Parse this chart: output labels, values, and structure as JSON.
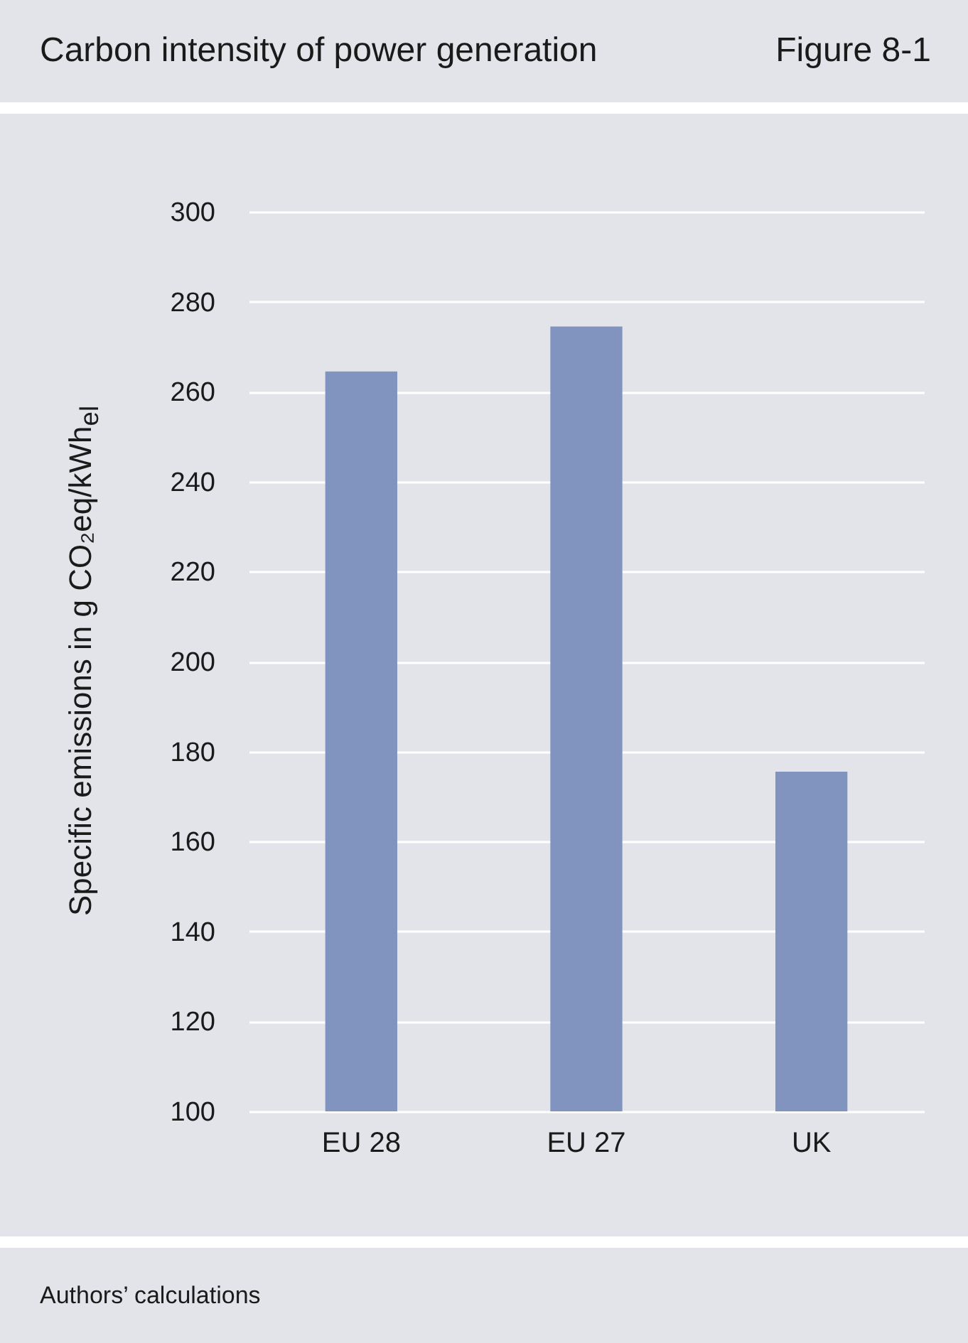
{
  "chart_data": {
    "type": "bar",
    "title": "Carbon intensity of power generation",
    "ylabel": "Specific emissions in g CO₂eq/kWh$_{el}$",
    "categories": [
      "EU 28",
      "EU 27",
      "UK"
    ],
    "values": [
      264.5,
      274.5,
      175.5
    ],
    "color": "#8193bf",
    "ylim": [
      100,
      300
    ],
    "yticks": [
      100,
      120,
      140,
      160,
      180,
      200,
      220,
      240,
      260,
      280,
      300
    ],
    "grid": "y",
    "annotations": [
      "Figure 8-1",
      "Authors’ calculations"
    ]
  }
}
